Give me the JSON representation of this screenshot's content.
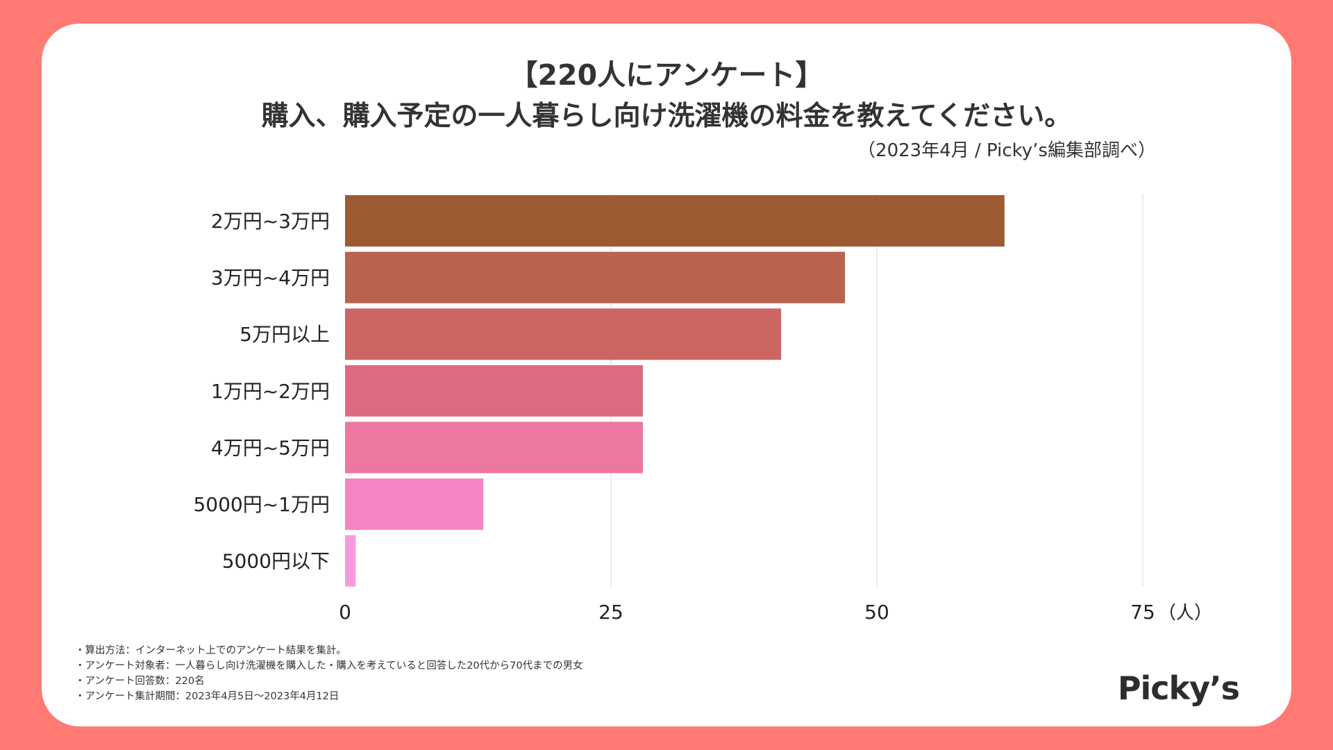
{
  "header": {
    "line1": "【220人にアンケート】",
    "line2": "購入、購入予定の一人暮らし向け洗濯機の料金を教えてください。",
    "source": "（2023年4月 / Picky’s編集部調べ）"
  },
  "chart_data": {
    "type": "bar",
    "orientation": "horizontal",
    "title": "購入、購入予定の一人暮らし向け洗濯機の料金を教えてください。",
    "categories": [
      "2万円~3万円",
      "3万円~4万円",
      "5万円以上",
      "1万円~2万円",
      "4万円~5万円",
      "5000円~1万円",
      "5000円以下"
    ],
    "values": [
      62,
      47,
      41,
      28,
      28,
      13,
      1
    ],
    "colors": [
      "#9E5A33",
      "#B8634D",
      "#CD6563",
      "#DD6A80",
      "#EC77A0",
      "#F585C5",
      "#F79BE0"
    ],
    "xlim": [
      0,
      75
    ],
    "xticks": [
      "0",
      "25",
      "50",
      "75"
    ],
    "xtick_values": [
      0,
      25,
      50,
      75
    ],
    "xunit": "（人）",
    "grid": true,
    "legend": "none"
  },
  "footnotes": [
    "・算出方法：インターネット上でのアンケート結果を集計。",
    "・アンケート対象者：一人暮らし向け洗濯機を購入した・購入を考えていると回答した20代から70代までの男女",
    "・アンケート回答数：220名",
    "・アンケート集計期間：2023年4月5日〜2023年4月12日"
  ],
  "brand": {
    "logo": "Picky’s"
  }
}
